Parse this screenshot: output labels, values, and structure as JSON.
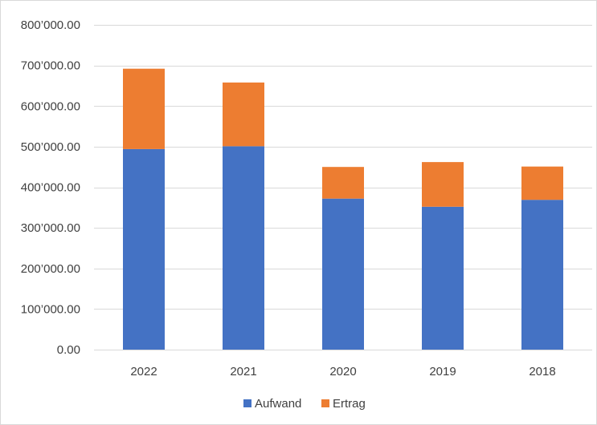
{
  "chart_data": {
    "type": "bar",
    "stacked": true,
    "categories": [
      "2022",
      "2021",
      "2020",
      "2019",
      "2018"
    ],
    "series": [
      {
        "name": "Aufwand",
        "color": "#4472c4",
        "values": [
          494000,
          501000,
          372000,
          352000,
          369000
        ]
      },
      {
        "name": "Ertrag",
        "color": "#ed7d31",
        "values": [
          198000,
          157000,
          78000,
          110000,
          82000
        ]
      }
    ],
    "ylim": [
      0,
      800000
    ],
    "y_ticks": [
      0,
      100000,
      200000,
      300000,
      400000,
      500000,
      600000,
      700000,
      800000
    ],
    "y_tick_labels": [
      "0.00",
      "100’000.00",
      "200’000.00",
      "300’000.00",
      "400’000.00",
      "500’000.00",
      "600’000.00",
      "700’000.00",
      "800’000.00"
    ],
    "grid": true,
    "legend_position": "bottom",
    "gridline_color": "#d9d9d9"
  }
}
